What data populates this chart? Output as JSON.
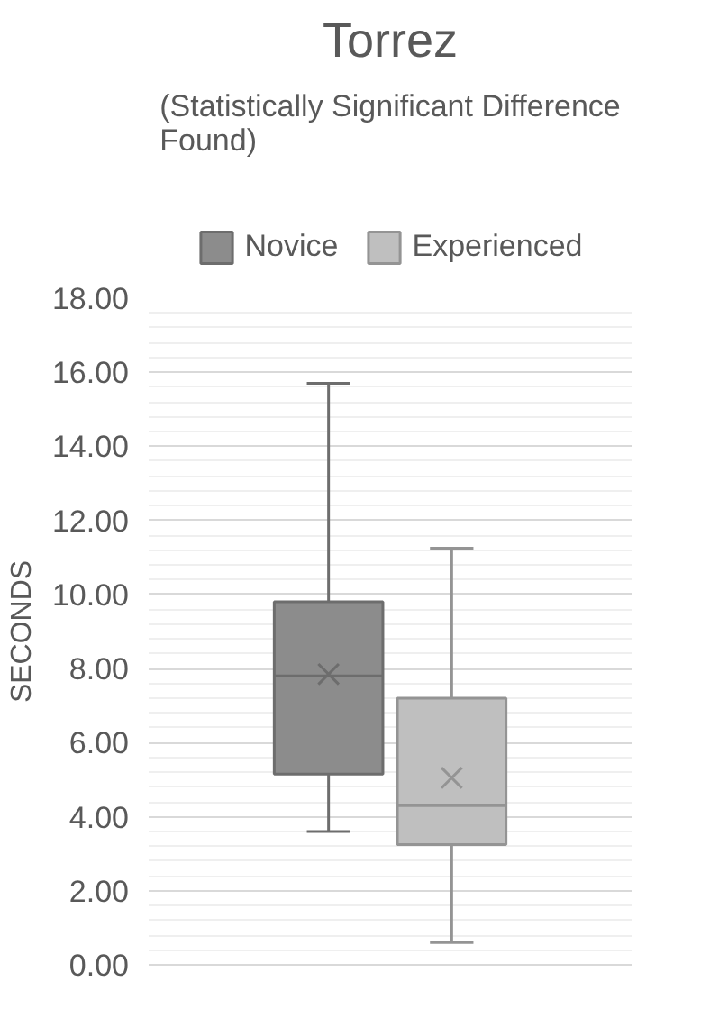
{
  "chart_data": {
    "type": "box",
    "title": "Torrez",
    "subtitle": "(Statistically Significant Difference Found)",
    "ylabel": "SECONDS",
    "categories": [
      null
    ],
    "series": [
      {
        "name": "Novice",
        "color": "#8c8c8c",
        "boxes": [
          {
            "low": 3.6,
            "q1": 5.15,
            "median": 7.8,
            "q3": 9.8,
            "high": 15.7,
            "mean": 7.85
          }
        ]
      },
      {
        "name": "Experienced",
        "color": "#bfbfbf",
        "boxes": [
          {
            "low": 0.6,
            "q1": 3.25,
            "median": 4.3,
            "q3": 7.2,
            "high": 11.25,
            "mean": 5.05
          }
        ]
      }
    ],
    "ylim": [
      0,
      18
    ],
    "yticks": [
      {
        "value": 0,
        "label": "0.00"
      },
      {
        "value": 2,
        "label": "2.00"
      },
      {
        "value": 4,
        "label": "4.00"
      },
      {
        "value": 6,
        "label": "6.00"
      },
      {
        "value": 8,
        "label": "8.00"
      },
      {
        "value": 10,
        "label": "10.00"
      },
      {
        "value": 12,
        "label": "12.00"
      },
      {
        "value": 14,
        "label": "14.00"
      },
      {
        "value": 16,
        "label": "16.00"
      },
      {
        "value": 18,
        "label": "18.00"
      }
    ],
    "grid": "y",
    "legend": "top",
    "marker": "cross"
  }
}
